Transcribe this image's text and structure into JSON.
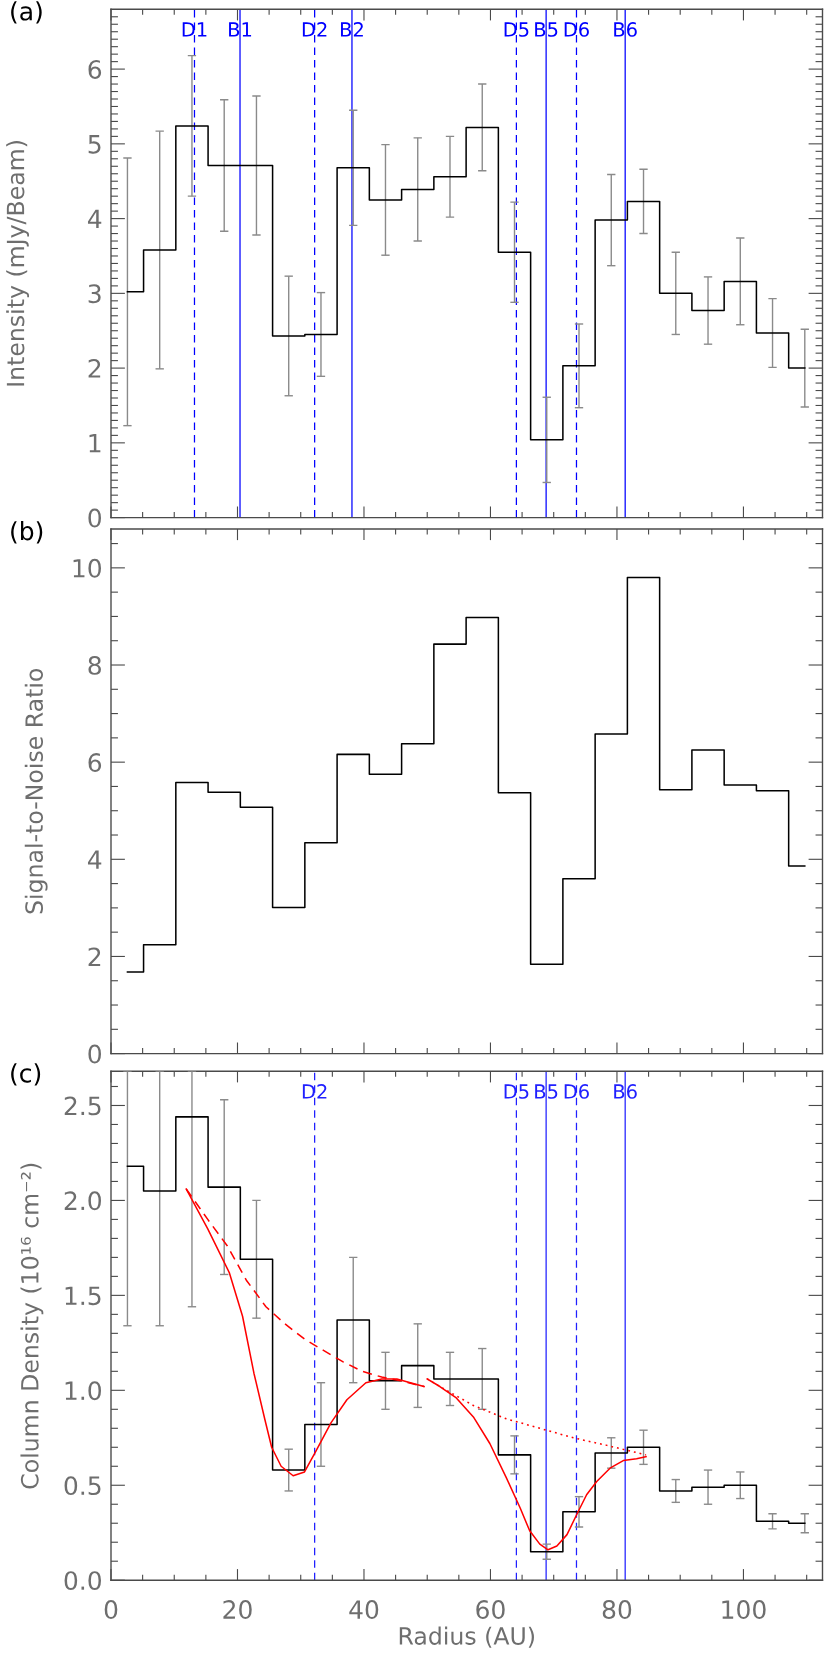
{
  "chart_data": [
    {
      "type": "step",
      "title": "(a)",
      "ylabel": "Intensity (mJy/Beam)",
      "tick_labels": "y",
      "x": [
        2.6,
        7.7,
        12.8,
        17.9,
        23.0,
        28.1,
        33.2,
        38.3,
        43.4,
        48.5,
        53.6,
        58.7,
        63.8,
        68.9,
        74.0,
        79.1,
        84.2,
        89.3,
        94.4,
        99.5,
        104.6,
        109.7
      ],
      "series": [
        {
          "color": "#000000",
          "values": [
            3.02,
            3.58,
            5.24,
            4.71,
            4.71,
            2.43,
            2.45,
            4.68,
            4.25,
            4.39,
            4.56,
            5.22,
            3.55,
            1.04,
            2.03,
            3.98,
            4.23,
            3.0,
            2.77,
            3.16,
            2.47,
            2.0
          ],
          "errors": [
            1.79,
            1.59,
            0.94,
            0.88,
            0.93,
            0.8,
            0.56,
            0.77,
            0.74,
            0.69,
            0.54,
            0.58,
            0.67,
            0.57,
            0.56,
            0.61,
            0.43,
            0.55,
            0.45,
            0.58,
            0.46,
            0.52
          ]
        }
      ],
      "ref_lines": [
        {
          "axis": "x",
          "value": 13.2,
          "label": "D1",
          "color": "#0000ff",
          "line_style": "dashed"
        },
        {
          "axis": "x",
          "value": 20.4,
          "label": "B1",
          "color": "#0000ff",
          "line_style": "solid"
        },
        {
          "axis": "x",
          "value": 32.2,
          "label": "D2",
          "color": "#0000ff",
          "line_style": "dashed"
        },
        {
          "axis": "x",
          "value": 38.1,
          "label": "B2",
          "color": "#0000ff",
          "line_style": "solid"
        },
        {
          "axis": "x",
          "value": 64.1,
          "label": "D5",
          "color": "#0000ff",
          "line_style": "dashed"
        },
        {
          "axis": "x",
          "value": 68.8,
          "label": "B5",
          "color": "#0000ff",
          "line_style": "solid"
        },
        {
          "axis": "x",
          "value": 73.6,
          "label": "D6",
          "color": "#0000ff",
          "line_style": "dashed"
        },
        {
          "axis": "x",
          "value": 81.3,
          "label": "B6",
          "color": "#0000ff",
          "line_style": "solid"
        }
      ],
      "xlim": [
        0,
        112.5
      ],
      "ylim": [
        0,
        6.8
      ],
      "xticks": [
        0,
        {
          "value": 5,
          "label": null
        },
        {
          "value": 10,
          "label": null
        },
        {
          "value": 15,
          "label": null
        },
        20,
        {
          "value": 25,
          "label": null
        },
        {
          "value": 30,
          "label": null
        },
        {
          "value": 35,
          "label": null
        },
        40,
        {
          "value": 45,
          "label": null
        },
        {
          "value": 50,
          "label": null
        },
        {
          "value": 55,
          "label": null
        },
        60,
        {
          "value": 65,
          "label": null
        },
        {
          "value": 70,
          "label": null
        },
        {
          "value": 75,
          "label": null
        },
        80,
        {
          "value": 85,
          "label": null
        },
        {
          "value": 90,
          "label": null
        },
        {
          "value": 95,
          "label": null
        },
        100,
        {
          "value": 105,
          "label": null
        },
        {
          "value": 110,
          "label": null
        }
      ],
      "yticks": [
        0,
        {
          "value": 0.1,
          "label": null
        },
        {
          "value": 0.2,
          "label": null
        },
        {
          "value": 0.3,
          "label": null
        },
        {
          "value": 0.4,
          "label": null
        },
        {
          "value": 0.5,
          "label": null
        },
        {
          "value": 0.6,
          "label": null
        },
        {
          "value": 0.7,
          "label": null
        },
        {
          "value": 0.8,
          "label": null
        },
        {
          "value": 0.9,
          "label": null
        },
        1,
        {
          "value": 1.1,
          "label": null
        },
        {
          "value": 1.2,
          "label": null
        },
        {
          "value": 1.3,
          "label": null
        },
        {
          "value": 1.4,
          "label": null
        },
        {
          "value": 1.5,
          "label": null
        },
        {
          "value": 1.6,
          "label": null
        },
        {
          "value": 1.7,
          "label": null
        },
        {
          "value": 1.8,
          "label": null
        },
        {
          "value": 1.9,
          "label": null
        },
        2,
        {
          "value": 2.1,
          "label": null
        },
        {
          "value": 2.2,
          "label": null
        },
        {
          "value": 2.3,
          "label": null
        },
        {
          "value": 2.4,
          "label": null
        },
        {
          "value": 2.5,
          "label": null
        },
        {
          "value": 2.6,
          "label": null
        },
        {
          "value": 2.7,
          "label": null
        },
        {
          "value": 2.8,
          "label": null
        },
        {
          "value": 2.9,
          "label": null
        },
        3,
        {
          "value": 3.1,
          "label": null
        },
        {
          "value": 3.2,
          "label": null
        },
        {
          "value": 3.3,
          "label": null
        },
        {
          "value": 3.4,
          "label": null
        },
        {
          "value": 3.5,
          "label": null
        },
        {
          "value": 3.6,
          "label": null
        },
        {
          "value": 3.7,
          "label": null
        },
        {
          "value": 3.8,
          "label": null
        },
        {
          "value": 3.9,
          "label": null
        },
        4,
        {
          "value": 4.1,
          "label": null
        },
        {
          "value": 4.2,
          "label": null
        },
        {
          "value": 4.3,
          "label": null
        },
        {
          "value": 4.4,
          "label": null
        },
        {
          "value": 4.5,
          "label": null
        },
        {
          "value": 4.6,
          "label": null
        },
        {
          "value": 4.7,
          "label": null
        },
        {
          "value": 4.8,
          "label": null
        },
        {
          "value": 4.9,
          "label": null
        },
        5,
        {
          "value": 5.1,
          "label": null
        },
        {
          "value": 5.2,
          "label": null
        },
        {
          "value": 5.3,
          "label": null
        },
        {
          "value": 5.4,
          "label": null
        },
        {
          "value": 5.5,
          "label": null
        },
        {
          "value": 5.6,
          "label": null
        },
        {
          "value": 5.7,
          "label": null
        },
        {
          "value": 5.8,
          "label": null
        },
        {
          "value": 5.9,
          "label": null
        },
        6,
        {
          "value": 6.1,
          "label": null
        },
        {
          "value": 6.2,
          "label": null
        },
        {
          "value": 6.3,
          "label": null
        },
        {
          "value": 6.4,
          "label": null
        },
        {
          "value": 6.5,
          "label": null
        },
        {
          "value": 6.6,
          "label": null
        },
        {
          "value": 6.7,
          "label": null
        }
      ]
    },
    {
      "type": "step",
      "title": "(b)",
      "ylabel": "Signal-to-Noise Ratio",
      "tick_labels": "y",
      "x": [
        2.6,
        7.7,
        12.8,
        17.9,
        23.0,
        28.1,
        33.2,
        38.3,
        43.4,
        48.5,
        53.6,
        58.7,
        63.8,
        68.9,
        74.0,
        79.1,
        84.2,
        89.3,
        94.4,
        99.5,
        104.6,
        109.7
      ],
      "series": [
        {
          "color": "#000000",
          "values": [
            1.68,
            2.24,
            5.58,
            5.38,
            5.07,
            3.01,
            4.34,
            6.16,
            5.75,
            6.38,
            8.43,
            8.98,
            5.37,
            1.84,
            3.6,
            6.58,
            9.8,
            5.43,
            6.25,
            5.53,
            5.41,
            3.86
          ]
        }
      ],
      "xlim": [
        0,
        112.5
      ],
      "ylim": [
        0,
        10.8
      ],
      "xticks": [
        0,
        {
          "value": 5,
          "label": null
        },
        {
          "value": 10,
          "label": null
        },
        {
          "value": 15,
          "label": null
        },
        20,
        {
          "value": 25,
          "label": null
        },
        {
          "value": 30,
          "label": null
        },
        {
          "value": 35,
          "label": null
        },
        40,
        {
          "value": 45,
          "label": null
        },
        {
          "value": 50,
          "label": null
        },
        {
          "value": 55,
          "label": null
        },
        60,
        {
          "value": 65,
          "label": null
        },
        {
          "value": 70,
          "label": null
        },
        {
          "value": 75,
          "label": null
        },
        80,
        {
          "value": 85,
          "label": null
        },
        {
          "value": 90,
          "label": null
        },
        {
          "value": 95,
          "label": null
        },
        100,
        {
          "value": 105,
          "label": null
        },
        {
          "value": 110,
          "label": null
        }
      ],
      "yticks": [
        0,
        {
          "value": 0.5,
          "label": null
        },
        {
          "value": 1,
          "label": null
        },
        {
          "value": 1.5,
          "label": null
        },
        2,
        {
          "value": 2.5,
          "label": null
        },
        {
          "value": 3,
          "label": null
        },
        {
          "value": 3.5,
          "label": null
        },
        4,
        {
          "value": 4.5,
          "label": null
        },
        {
          "value": 5,
          "label": null
        },
        {
          "value": 5.5,
          "label": null
        },
        6,
        {
          "value": 6.5,
          "label": null
        },
        {
          "value": 7,
          "label": null
        },
        {
          "value": 7.5,
          "label": null
        },
        8,
        {
          "value": 8.5,
          "label": null
        },
        {
          "value": 9,
          "label": null
        },
        {
          "value": 9.5,
          "label": null
        },
        10,
        {
          "value": 10.5,
          "label": null
        }
      ]
    },
    {
      "type": "step",
      "title": "(c)",
      "ylabel": "Column Density (10¹⁶ cm⁻²)",
      "xlabel": "Radius (AU)",
      "x": [
        2.6,
        7.7,
        12.8,
        17.9,
        23.0,
        28.1,
        33.2,
        38.3,
        43.4,
        48.5,
        53.6,
        58.7,
        63.8,
        68.9,
        74.0,
        79.1,
        84.2,
        89.3,
        94.4,
        99.5,
        104.6,
        109.7
      ],
      "series": [
        {
          "color": "#000000",
          "values": [
            2.18,
            2.05,
            2.44,
            2.07,
            1.69,
            0.58,
            0.82,
            1.37,
            1.05,
            1.13,
            1.06,
            1.06,
            0.66,
            0.15,
            0.36,
            0.67,
            0.7,
            0.47,
            0.49,
            0.5,
            0.31,
            0.3
          ],
          "errors": [
            [
              1.34,
              2.68
            ],
            [
              1.34,
              2.68
            ],
            [
              1.44,
              2.68
            ],
            0.46,
            0.31,
            0.11,
            0.22,
            0.33,
            0.15,
            0.22,
            0.14,
            0.16,
            0.1,
            0.04,
            0.08,
            0.08,
            0.09,
            0.06,
            0.09,
            0.07,
            0.04,
            0.05
          ]
        },
        {
          "type": "line",
          "color": "#ff0000",
          "line_style": "solid",
          "x": [
            11.9,
            15.3,
            18.7,
            20.8,
            22.6,
            24.3,
            25.4,
            26.9,
            28.8,
            30.6,
            32.4,
            34.8,
            37.3,
            40.3,
            42.8,
            45.2,
            49.5
          ],
          "values": [
            2.06,
            1.85,
            1.62,
            1.39,
            1.09,
            0.85,
            0.7,
            0.6,
            0.55,
            0.57,
            0.68,
            0.83,
            0.95,
            1.04,
            1.06,
            1.06,
            1.02
          ]
        },
        {
          "type": "line",
          "color": "#ff0000",
          "line_style": "dashed",
          "x": [
            11.9,
            15.3,
            18.4,
            21.4,
            24.5,
            27.5,
            30.6,
            33.6,
            36.7,
            39.7,
            42.8,
            45.8,
            49.5
          ],
          "values": [
            2.06,
            1.9,
            1.76,
            1.58,
            1.44,
            1.35,
            1.27,
            1.21,
            1.15,
            1.1,
            1.07,
            1.05,
            1.02
          ]
        },
        {
          "type": "line",
          "color": "#ff0000",
          "line_style": "solid",
          "x": [
            50.0,
            52.0,
            54.6,
            57.3,
            59.9,
            62.5,
            64.7,
            66.2,
            67.8,
            69.1,
            70.5,
            72.1,
            73.7,
            75.2,
            76.8,
            78.9,
            81.0,
            83.1,
            84.6
          ],
          "values": [
            1.06,
            1.02,
            0.96,
            0.86,
            0.72,
            0.54,
            0.38,
            0.26,
            0.19,
            0.16,
            0.18,
            0.24,
            0.35,
            0.45,
            0.52,
            0.59,
            0.63,
            0.64,
            0.65
          ]
        },
        {
          "type": "line",
          "color": "#ff0000",
          "line_style": "dotted",
          "x": [
            50.0,
            52.0,
            57.3,
            62.5,
            67.8,
            73.1,
            78.4,
            84.6
          ],
          "values": [
            1.06,
            1.02,
            0.92,
            0.85,
            0.8,
            0.75,
            0.71,
            0.66
          ]
        }
      ],
      "ref_lines": [
        {
          "axis": "x",
          "value": 32.2,
          "label": "D2",
          "color": "#2020ff",
          "line_style": "dashed"
        },
        {
          "axis": "x",
          "value": 64.1,
          "label": "D5",
          "color": "#2020ff",
          "line_style": "dashed"
        },
        {
          "axis": "x",
          "value": 68.8,
          "label": "B5",
          "color": "#2020ff",
          "line_style": "solid"
        },
        {
          "axis": "x",
          "value": 73.6,
          "label": "D6",
          "color": "#2020ff",
          "line_style": "dashed"
        },
        {
          "axis": "x",
          "value": 81.3,
          "label": "B6",
          "color": "#2020ff",
          "line_style": "solid"
        }
      ],
      "xlim": [
        0,
        112.5
      ],
      "ylim": [
        0,
        2.68
      ],
      "xticks": [
        0,
        {
          "value": 5,
          "label": null
        },
        {
          "value": 10,
          "label": null
        },
        {
          "value": 15,
          "label": null
        },
        20,
        {
          "value": 25,
          "label": null
        },
        {
          "value": 30,
          "label": null
        },
        {
          "value": 35,
          "label": null
        },
        40,
        {
          "value": 45,
          "label": null
        },
        {
          "value": 50,
          "label": null
        },
        {
          "value": 55,
          "label": null
        },
        60,
        {
          "value": 65,
          "label": null
        },
        {
          "value": 70,
          "label": null
        },
        {
          "value": 75,
          "label": null
        },
        80,
        {
          "value": 85,
          "label": null
        },
        {
          "value": 90,
          "label": null
        },
        {
          "value": 95,
          "label": null
        },
        100,
        {
          "value": 105,
          "label": null
        },
        {
          "value": 110,
          "label": null
        }
      ],
      "yticks": [
        {
          "value": 0,
          "label": "0.0"
        },
        {
          "value": 0.1,
          "label": null
        },
        {
          "value": 0.2,
          "label": null
        },
        {
          "value": 0.3,
          "label": null
        },
        {
          "value": 0.4,
          "label": null
        },
        0.5,
        {
          "value": 0.6,
          "label": null
        },
        {
          "value": 0.7,
          "label": null
        },
        {
          "value": 0.8,
          "label": null
        },
        {
          "value": 0.9,
          "label": null
        },
        {
          "value": 1,
          "label": "1.0"
        },
        {
          "value": 1.1,
          "label": null
        },
        {
          "value": 1.2,
          "label": null
        },
        {
          "value": 1.3,
          "label": null
        },
        {
          "value": 1.4,
          "label": null
        },
        1.5,
        {
          "value": 1.6,
          "label": null
        },
        {
          "value": 1.7,
          "label": null
        },
        {
          "value": 1.8,
          "label": null
        },
        {
          "value": 1.9,
          "label": null
        },
        {
          "value": 2,
          "label": "2.0"
        },
        {
          "value": 2.1,
          "label": null
        },
        {
          "value": 2.2,
          "label": null
        },
        {
          "value": 2.3,
          "label": null
        },
        {
          "value": 2.4,
          "label": null
        },
        2.5,
        {
          "value": 2.6,
          "label": null
        }
      ]
    }
  ]
}
